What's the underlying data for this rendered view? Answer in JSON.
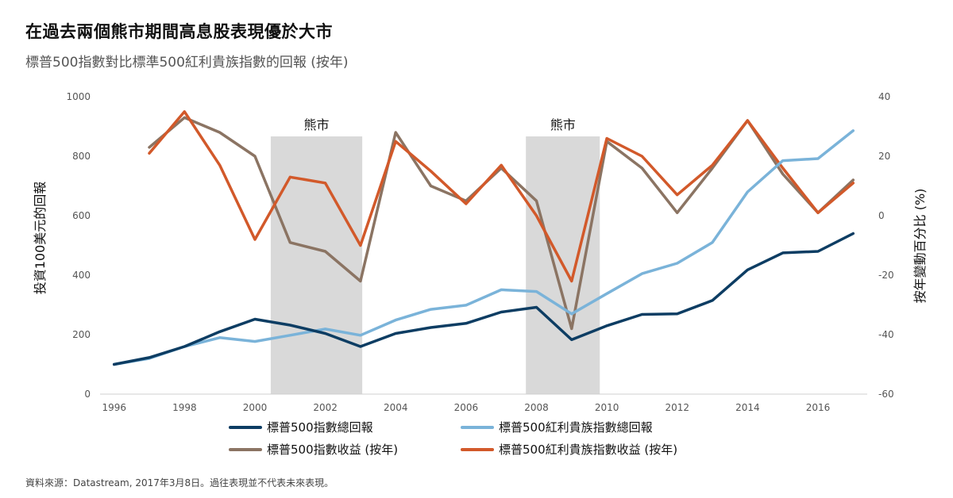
{
  "title": "在過去兩個熊市期間高息股表現優於大市",
  "subtitle": "標普500指數對比標準500紅利貴族指數的回報 (按年)",
  "footnote": "資料來源：Datastream, 2017年3月8日。過往表現並不代表未來表現。",
  "chart_data": {
    "type": "line",
    "x": [
      1996,
      1997,
      1998,
      1999,
      2000,
      2001,
      2002,
      2003,
      2004,
      2005,
      2006,
      2007,
      2008,
      2009,
      2010,
      2011,
      2012,
      2013,
      2014,
      2015,
      2016,
      2017
    ],
    "x_ticks": [
      "1996",
      "1998",
      "2000",
      "2002",
      "2004",
      "2006",
      "2008",
      "2010",
      "2012",
      "2014",
      "2016"
    ],
    "xlim": [
      1995.6,
      2017.4
    ],
    "ylabel_left": "投資100美元的回報",
    "ylabel_right": "按年變動百分比 (%)",
    "y_left": {
      "lim": [
        0,
        1000
      ],
      "ticks": [
        "0",
        "200",
        "400",
        "600",
        "800",
        "1000"
      ]
    },
    "y_right": {
      "lim": [
        -60,
        40
      ],
      "ticks": [
        "-60",
        "-40",
        "-20",
        "0",
        "20",
        "40"
      ]
    },
    "bear_markets": [
      {
        "label": "熊市",
        "start": 2000.45,
        "end": 2003.05
      },
      {
        "label": "熊市",
        "start": 2007.7,
        "end": 2009.8
      }
    ],
    "series": [
      {
        "name": "標普500指數總回報",
        "axis": "left",
        "color": "#0d3d63",
        "values": [
          100,
          123,
          160,
          210,
          252,
          232,
          204,
          160,
          204,
          224,
          238,
          276,
          292,
          183,
          230,
          268,
          270,
          315,
          418,
          475,
          480,
          540
        ]
      },
      {
        "name": "標普500紅利貴族指數總回報",
        "axis": "left",
        "color": "#7ab3d9",
        "values": [
          100,
          120,
          160,
          190,
          177,
          198,
          219,
          198,
          249,
          285,
          299,
          351,
          345,
          270,
          338,
          405,
          440,
          510,
          680,
          785,
          792,
          886
        ]
      },
      {
        "name": "標普500指數收益 (按年)",
        "axis": "right",
        "color": "#8b7463",
        "values": [
          null,
          23,
          33,
          28,
          20,
          -9,
          -12,
          -22,
          28,
          10,
          5,
          16,
          5,
          -38,
          25,
          16,
          1,
          16,
          32,
          14,
          1,
          12
        ]
      },
      {
        "name": "標普500紅利貴族指數收益 (按年)",
        "axis": "right",
        "color": "#d2592a",
        "values": [
          null,
          21,
          35,
          17,
          -8,
          13,
          11,
          -10,
          25,
          15,
          4,
          17,
          0,
          -22,
          26,
          20,
          7,
          17,
          32,
          16,
          1,
          11
        ]
      }
    ]
  }
}
